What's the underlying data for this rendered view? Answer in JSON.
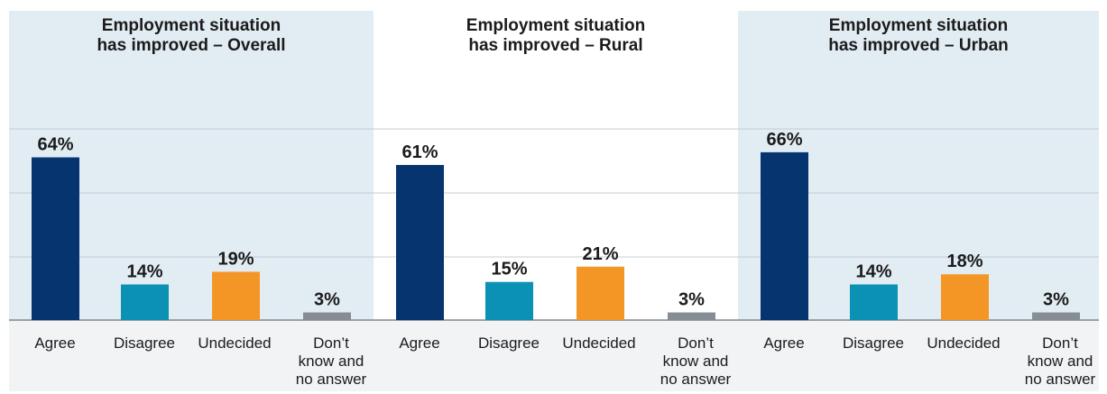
{
  "colors": {
    "panel_shaded": "#e2ecf3",
    "panel_plain": "#ffffff",
    "label_band": "#f2f3f4",
    "gridline": "#c4ccd6",
    "baseline": "#7f8892",
    "agree": "#06346e",
    "disagree": "#0a91b3",
    "undecided": "#f39625",
    "dont_know": "#878d95"
  },
  "chart_data": [
    {
      "type": "bar",
      "title": "Employment situation has improved – Overall",
      "title_lines": [
        "Employment situation",
        "has improved – Overall"
      ],
      "panel_shaded": true,
      "categories": [
        "Agree",
        "Disagree",
        "Undecided",
        "Don’t know and no answer"
      ],
      "category_lines": [
        [
          "Agree"
        ],
        [
          "Disagree"
        ],
        [
          "Undecided"
        ],
        [
          "Don’t",
          "know and",
          "no answer"
        ]
      ],
      "values": [
        64,
        14,
        19,
        3
      ],
      "value_labels": [
        "64%",
        "14%",
        "19%",
        "3%"
      ],
      "bar_colors": [
        "agree",
        "disagree",
        "undecided",
        "dont_know"
      ],
      "ylim": [
        0,
        100
      ],
      "grid": true
    },
    {
      "type": "bar",
      "title": "Employment situation has improved – Rural",
      "title_lines": [
        "Employment situation",
        "has improved – Rural"
      ],
      "panel_shaded": false,
      "categories": [
        "Agree",
        "Disagree",
        "Undecided",
        "Don’t know and no answer"
      ],
      "category_lines": [
        [
          "Agree"
        ],
        [
          "Disagree"
        ],
        [
          "Undecided"
        ],
        [
          "Don’t",
          "know and",
          "no answer"
        ]
      ],
      "values": [
        61,
        15,
        21,
        3
      ],
      "value_labels": [
        "61%",
        "15%",
        "21%",
        "3%"
      ],
      "bar_colors": [
        "agree",
        "disagree",
        "undecided",
        "dont_know"
      ],
      "ylim": [
        0,
        100
      ],
      "grid": true
    },
    {
      "type": "bar",
      "title": "Employment situation has improved – Urban",
      "title_lines": [
        "Employment situation",
        "has improved – Urban"
      ],
      "panel_shaded": true,
      "categories": [
        "Agree",
        "Disagree",
        "Undecided",
        "Don’t know and no answer"
      ],
      "category_lines": [
        [
          "Agree"
        ],
        [
          "Disagree"
        ],
        [
          "Undecided"
        ],
        [
          "Don’t",
          "know and",
          "no answer"
        ]
      ],
      "values": [
        66,
        14,
        18,
        3
      ],
      "value_labels": [
        "66%",
        "14%",
        "18%",
        "3%"
      ],
      "bar_colors": [
        "agree",
        "disagree",
        "undecided",
        "dont_know"
      ],
      "ylim": [
        0,
        100
      ],
      "grid": true
    }
  ]
}
